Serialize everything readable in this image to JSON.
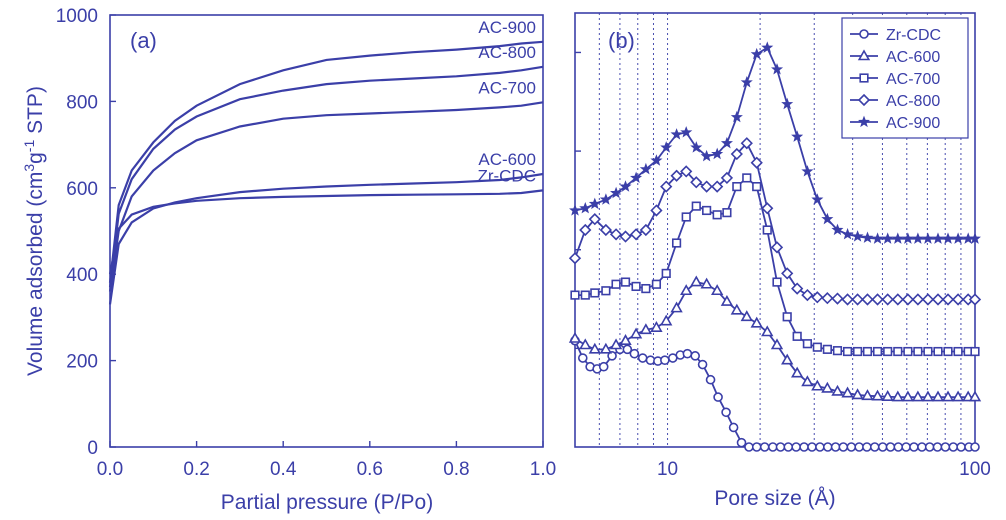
{
  "colors": {
    "series": "#3b3fa8",
    "grid": "#4a4fb0",
    "axis": "#3b3fa8"
  },
  "chart_data": [
    {
      "type": "line",
      "panel_label": "(a)",
      "xlabel": "Partial pressure (P/Po)",
      "ylabel": "Volume adsorbed (cm³g⁻¹ STP)",
      "ylabel_parts": {
        "pre": "Volume adsorbed (cm",
        "sup1": "3",
        "mid": "g",
        "sup2": "-1",
        "post": " STP)"
      },
      "xlim": [
        0,
        1
      ],
      "ylim": [
        0,
        1000
      ],
      "xticks": [
        "0.0",
        "0.2",
        "0.4",
        "0.6",
        "0.8",
        "1.0"
      ],
      "yticks": [
        "0",
        "200",
        "400",
        "600",
        "800",
        "1000"
      ],
      "grid": false,
      "series": [
        {
          "name": "AC-900",
          "x": [
            0.0,
            0.02,
            0.05,
            0.1,
            0.15,
            0.2,
            0.3,
            0.4,
            0.5,
            0.6,
            0.7,
            0.8,
            0.9,
            0.95,
            1.0
          ],
          "y": [
            380,
            560,
            640,
            705,
            755,
            790,
            840,
            872,
            896,
            906,
            914,
            920,
            928,
            934,
            938
          ]
        },
        {
          "name": "AC-800",
          "x": [
            0.0,
            0.02,
            0.05,
            0.1,
            0.15,
            0.2,
            0.3,
            0.4,
            0.5,
            0.6,
            0.7,
            0.8,
            0.9,
            0.95,
            1.0
          ],
          "y": [
            370,
            540,
            620,
            690,
            735,
            765,
            805,
            825,
            840,
            848,
            853,
            858,
            866,
            872,
            880
          ]
        },
        {
          "name": "AC-700",
          "x": [
            0.0,
            0.02,
            0.05,
            0.1,
            0.15,
            0.2,
            0.3,
            0.4,
            0.5,
            0.6,
            0.7,
            0.8,
            0.9,
            0.95,
            1.0
          ],
          "y": [
            360,
            500,
            580,
            640,
            680,
            710,
            742,
            760,
            768,
            772,
            776,
            780,
            786,
            790,
            798
          ]
        },
        {
          "name": "AC-600",
          "x": [
            0.0,
            0.02,
            0.05,
            0.1,
            0.15,
            0.2,
            0.3,
            0.4,
            0.5,
            0.6,
            0.7,
            0.8,
            0.9,
            0.95,
            1.0
          ],
          "y": [
            330,
            470,
            520,
            552,
            566,
            576,
            590,
            598,
            603,
            607,
            610,
            613,
            618,
            624,
            632
          ]
        },
        {
          "name": "Zr-CDC",
          "x": [
            0.0,
            0.02,
            0.05,
            0.1,
            0.15,
            0.2,
            0.3,
            0.4,
            0.5,
            0.6,
            0.7,
            0.8,
            0.9,
            0.95,
            1.0
          ],
          "y": [
            400,
            505,
            538,
            556,
            564,
            570,
            576,
            579,
            581,
            583,
            584,
            585,
            586,
            588,
            594
          ]
        }
      ]
    },
    {
      "type": "line",
      "panel_label": "(b)",
      "xlabel": "Pore size (Å)",
      "ylabel": "",
      "xscale": "log",
      "xlim": [
        5,
        100
      ],
      "xticks": [
        "10",
        "100"
      ],
      "grid": "vertical dotted minor lines",
      "legend_position": "top-right",
      "legend": [
        "Zr-CDC",
        "AC-600",
        "AC-700",
        "AC-800",
        "AC-900"
      ],
      "series": [
        {
          "name": "Zr-CDC",
          "marker": "circle",
          "x": [
            5.0,
            5.3,
            5.6,
            5.9,
            6.2,
            6.6,
            7.0,
            7.4,
            7.8,
            8.3,
            8.8,
            9.3,
            9.8,
            10.4,
            11.0,
            11.6,
            12.3,
            13.0,
            13.8,
            14.6,
            15.5,
            16.4,
            17.4,
            18.4,
            19.5,
            20.7,
            22.0,
            23.3,
            24.7,
            26.2,
            27.8,
            29.5,
            31.3,
            33.2,
            35.2,
            37.3,
            39.6,
            42.0,
            44.5,
            47.2,
            50.1,
            53.1,
            56.3,
            59.7,
            63.3,
            67.2,
            71.2,
            75.5,
            80.1,
            85.0,
            90.1,
            95.6,
            100.0
          ],
          "y": [
            0.245,
            0.205,
            0.185,
            0.18,
            0.185,
            0.21,
            0.225,
            0.225,
            0.215,
            0.205,
            0.2,
            0.198,
            0.2,
            0.205,
            0.212,
            0.215,
            0.21,
            0.19,
            0.155,
            0.115,
            0.08,
            0.045,
            0.01,
            0.0,
            0.0,
            0.0,
            0.0,
            0.0,
            0.0,
            0.0,
            0.0,
            0.0,
            0.0,
            0.0,
            0.0,
            0.0,
            0.0,
            0.0,
            0.0,
            0.0,
            0.0,
            0.0,
            0.0,
            0.0,
            0.0,
            0.0,
            0.0,
            0.0,
            0.0,
            0.0,
            0.0,
            0.0,
            0.0
          ]
        },
        {
          "name": "AC-600",
          "marker": "triangle",
          "x": [
            5.0,
            5.4,
            5.8,
            6.3,
            6.8,
            7.3,
            7.9,
            8.5,
            9.2,
            9.9,
            10.7,
            11.5,
            12.4,
            13.4,
            14.5,
            15.6,
            16.8,
            18.1,
            19.5,
            21.1,
            22.7,
            24.5,
            26.4,
            28.5,
            30.7,
            33.1,
            35.7,
            38.5,
            41.5,
            44.7,
            48.2,
            52.0,
            56.1,
            60.5,
            65.2,
            70.3,
            75.8,
            81.7,
            88.1,
            95.0,
            100.0
          ],
          "y": [
            0.25,
            0.235,
            0.225,
            0.225,
            0.235,
            0.245,
            0.26,
            0.27,
            0.275,
            0.29,
            0.32,
            0.36,
            0.38,
            0.375,
            0.36,
            0.335,
            0.315,
            0.3,
            0.285,
            0.265,
            0.235,
            0.2,
            0.17,
            0.15,
            0.14,
            0.135,
            0.128,
            0.124,
            0.12,
            0.118,
            0.117,
            0.116,
            0.115,
            0.115,
            0.115,
            0.115,
            0.115,
            0.115,
            0.115,
            0.115,
            0.115
          ]
        },
        {
          "name": "AC-700",
          "marker": "square",
          "x": [
            5.0,
            5.4,
            5.8,
            6.3,
            6.8,
            7.3,
            7.9,
            8.5,
            9.2,
            9.9,
            10.7,
            11.5,
            12.4,
            13.4,
            14.5,
            15.6,
            16.8,
            18.1,
            19.5,
            21.1,
            22.7,
            24.5,
            26.4,
            28.5,
            30.7,
            33.1,
            35.7,
            38.5,
            41.5,
            44.7,
            48.2,
            52.0,
            56.1,
            60.5,
            65.2,
            70.3,
            75.8,
            81.7,
            88.1,
            95.0,
            100.0
          ],
          "y": [
            0.35,
            0.35,
            0.355,
            0.36,
            0.375,
            0.38,
            0.37,
            0.365,
            0.375,
            0.4,
            0.47,
            0.53,
            0.555,
            0.545,
            0.535,
            0.54,
            0.6,
            0.62,
            0.6,
            0.5,
            0.38,
            0.3,
            0.255,
            0.238,
            0.23,
            0.225,
            0.222,
            0.22,
            0.22,
            0.22,
            0.22,
            0.22,
            0.22,
            0.22,
            0.22,
            0.22,
            0.22,
            0.22,
            0.22,
            0.22,
            0.22
          ]
        },
        {
          "name": "AC-800",
          "marker": "diamond",
          "x": [
            5.0,
            5.4,
            5.8,
            6.3,
            6.8,
            7.3,
            7.9,
            8.5,
            9.2,
            9.9,
            10.7,
            11.5,
            12.4,
            13.4,
            14.5,
            15.6,
            16.8,
            18.1,
            19.5,
            21.1,
            22.7,
            24.5,
            26.4,
            28.5,
            30.7,
            33.1,
            35.7,
            38.5,
            41.5,
            44.7,
            48.2,
            52.0,
            56.1,
            60.5,
            65.2,
            70.3,
            75.8,
            81.7,
            88.1,
            95.0,
            100.0
          ],
          "y": [
            0.435,
            0.5,
            0.525,
            0.5,
            0.49,
            0.485,
            0.49,
            0.5,
            0.545,
            0.6,
            0.625,
            0.635,
            0.61,
            0.6,
            0.6,
            0.62,
            0.675,
            0.7,
            0.655,
            0.55,
            0.46,
            0.4,
            0.365,
            0.35,
            0.345,
            0.343,
            0.342,
            0.34,
            0.34,
            0.34,
            0.34,
            0.34,
            0.34,
            0.34,
            0.34,
            0.34,
            0.34,
            0.34,
            0.34,
            0.34,
            0.34
          ]
        },
        {
          "name": "AC-900",
          "marker": "star",
          "x": [
            5.0,
            5.4,
            5.8,
            6.3,
            6.8,
            7.3,
            7.9,
            8.5,
            9.2,
            9.9,
            10.7,
            11.5,
            12.4,
            13.4,
            14.5,
            15.6,
            16.8,
            18.1,
            19.5,
            21.1,
            22.7,
            24.5,
            26.4,
            28.5,
            30.7,
            33.1,
            35.7,
            38.5,
            41.5,
            44.7,
            48.2,
            52.0,
            56.1,
            60.5,
            65.2,
            70.3,
            75.8,
            81.7,
            88.1,
            95.0,
            100.0
          ],
          "y": [
            0.545,
            0.55,
            0.56,
            0.57,
            0.585,
            0.6,
            0.62,
            0.64,
            0.66,
            0.69,
            0.72,
            0.725,
            0.69,
            0.67,
            0.675,
            0.7,
            0.76,
            0.84,
            0.905,
            0.92,
            0.87,
            0.79,
            0.715,
            0.635,
            0.57,
            0.525,
            0.5,
            0.49,
            0.485,
            0.482,
            0.48,
            0.48,
            0.48,
            0.48,
            0.48,
            0.48,
            0.48,
            0.48,
            0.48,
            0.48,
            0.48
          ]
        }
      ]
    }
  ]
}
